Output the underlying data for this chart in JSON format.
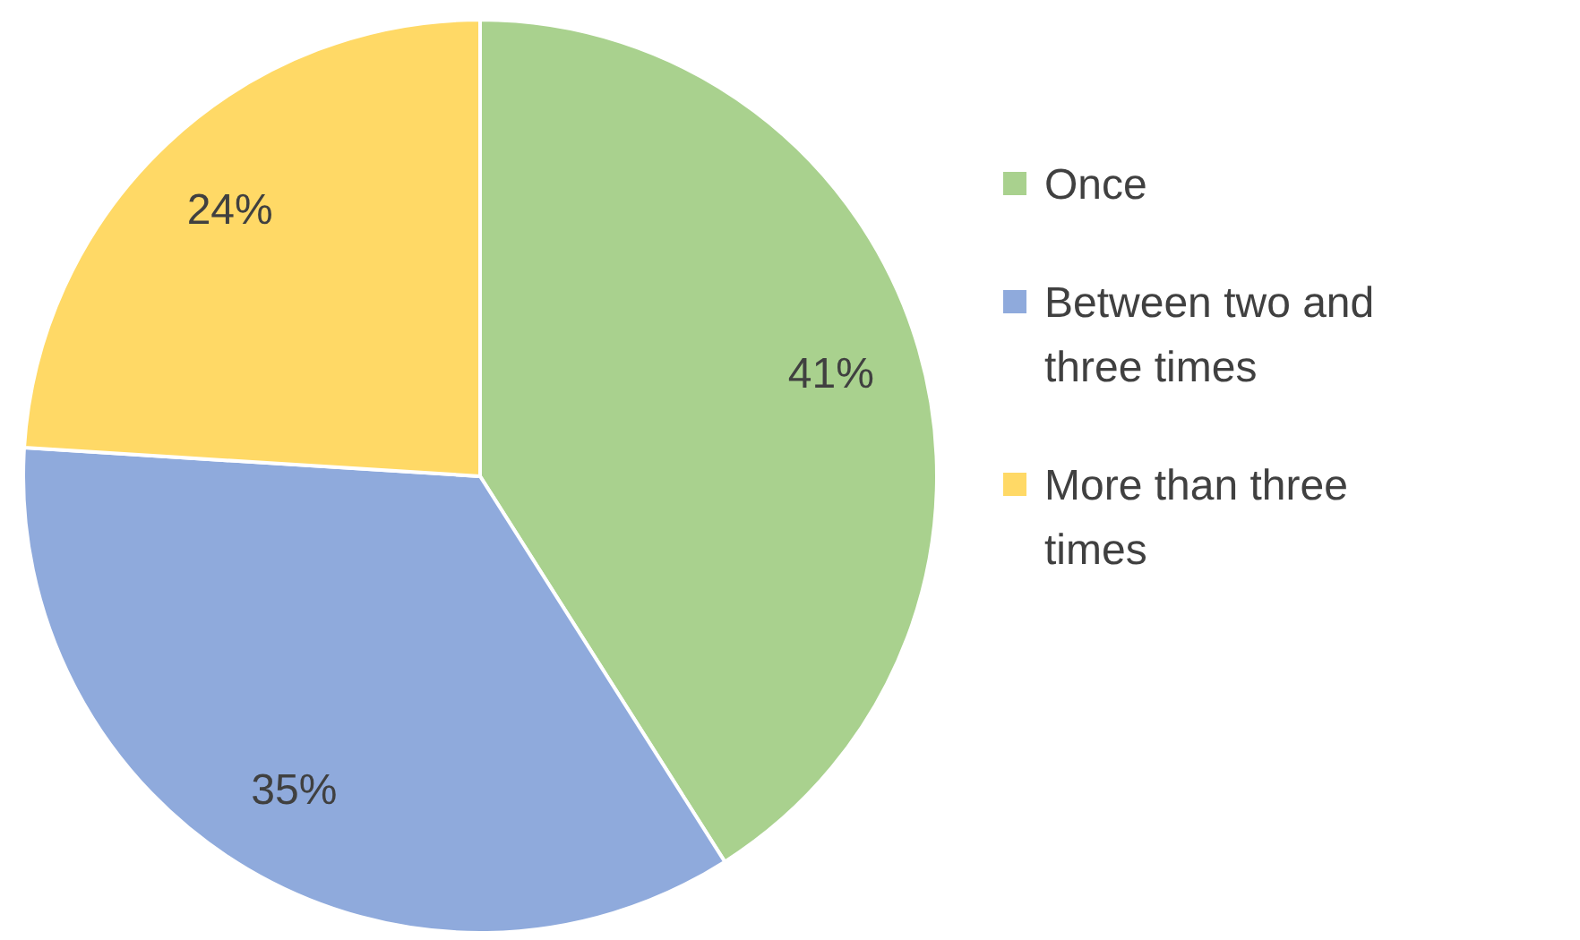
{
  "chart_data": {
    "type": "pie",
    "categories": [
      "Once",
      "Between two and three times",
      "More than three times"
    ],
    "values": [
      41,
      35,
      24
    ],
    "colors": [
      "#a9d18e",
      "#8faadc",
      "#ffd966"
    ],
    "value_labels": [
      "41%",
      "35%",
      "24%"
    ],
    "legend": "right"
  }
}
